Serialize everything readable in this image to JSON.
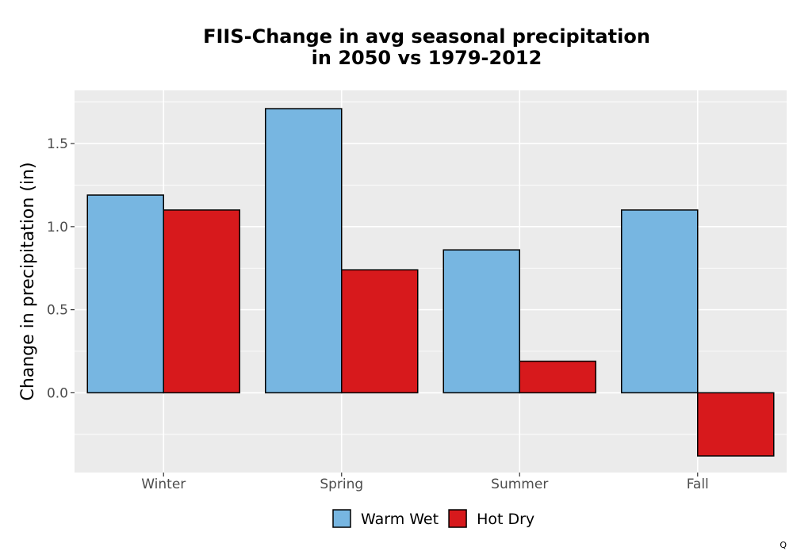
{
  "chart_data": {
    "type": "bar",
    "title_line1": "FIIS-Change in avg seasonal precipitation",
    "title_line2": "in 2050 vs 1979-2012",
    "xlabel": "",
    "ylabel": "Change in precipitation (in)",
    "categories": [
      "Winter",
      "Spring",
      "Summer",
      "Fall"
    ],
    "series": [
      {
        "name": "Warm Wet",
        "color": "#77b6e1",
        "values": [
          1.19,
          1.71,
          0.86,
          1.1
        ]
      },
      {
        "name": "Hot Dry",
        "color": "#d7191c",
        "values": [
          1.1,
          0.74,
          0.19,
          -0.38
        ]
      }
    ],
    "ylim": [
      -0.48,
      1.82
    ],
    "yticks": [
      "0.0",
      "0.5",
      "1.0",
      "1.5"
    ],
    "grid": true,
    "legend_position": "bottom"
  },
  "footer_mark": "Q"
}
